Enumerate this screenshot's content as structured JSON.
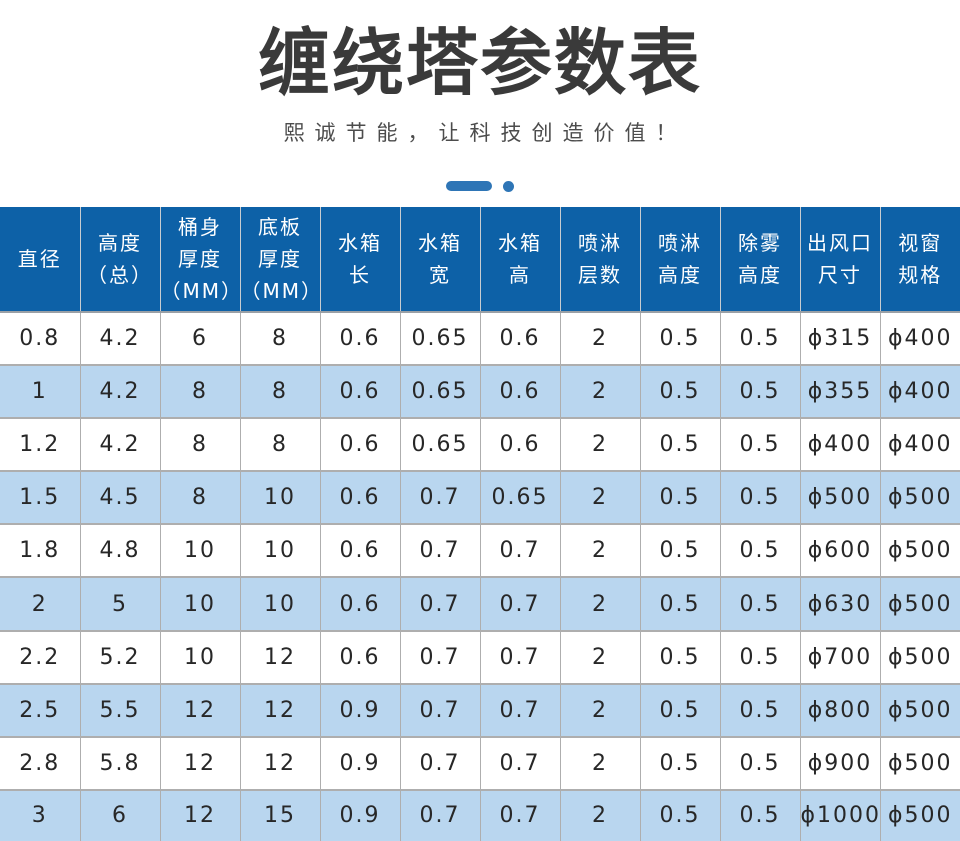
{
  "page": {
    "title": "缠绕塔参数表",
    "subtitle": "熙诚节能，让科技创造价值！"
  },
  "colors": {
    "header_bg": "#0d61a7",
    "alt_row_bg": "#b9d6ef",
    "accent": "#2e75b6",
    "grid_line": "#aeaeae",
    "title_color": "#3a3a3a",
    "header_text": "#ffffff",
    "body_text": "#272727"
  },
  "table": {
    "columns": [
      {
        "id": "diameter",
        "label": "直径",
        "lines": [
          "直径"
        ]
      },
      {
        "id": "height-total",
        "label": "高度（总）",
        "lines": [
          "高度",
          "（总）"
        ]
      },
      {
        "id": "barrel-thickness",
        "label": "桶身厚度（MM）",
        "lines": [
          "桶身",
          "厚度",
          "（MM）"
        ]
      },
      {
        "id": "base-thickness",
        "label": "底板厚度（MM）",
        "lines": [
          "底板",
          "厚度",
          "（MM）"
        ]
      },
      {
        "id": "tank-length",
        "label": "水箱长",
        "lines": [
          "水箱",
          "长"
        ]
      },
      {
        "id": "tank-width",
        "label": "水箱宽",
        "lines": [
          "水箱",
          "宽"
        ]
      },
      {
        "id": "tank-height",
        "label": "水箱高",
        "lines": [
          "水箱",
          "高"
        ]
      },
      {
        "id": "spray-layers",
        "label": "喷淋层数",
        "lines": [
          "喷淋",
          "层数"
        ]
      },
      {
        "id": "spray-height",
        "label": "喷淋高度",
        "lines": [
          "喷淋",
          "高度"
        ]
      },
      {
        "id": "demist-height",
        "label": "除雾高度",
        "lines": [
          "除雾",
          "高度"
        ]
      },
      {
        "id": "outlet-size",
        "label": "出风口尺寸",
        "lines": [
          "出风口",
          "尺寸"
        ]
      },
      {
        "id": "window-spec",
        "label": "视窗规格",
        "lines": [
          "视窗",
          "规格"
        ]
      }
    ],
    "rows": [
      [
        "0.8",
        "4.2",
        "6",
        "8",
        "0.6",
        "0.65",
        "0.6",
        "2",
        "0.5",
        "0.5",
        "ϕ315",
        "ϕ400"
      ],
      [
        "1",
        "4.2",
        "8",
        "8",
        "0.6",
        "0.65",
        "0.6",
        "2",
        "0.5",
        "0.5",
        "ϕ355",
        "ϕ400"
      ],
      [
        "1.2",
        "4.2",
        "8",
        "8",
        "0.6",
        "0.65",
        "0.6",
        "2",
        "0.5",
        "0.5",
        "ϕ400",
        "ϕ400"
      ],
      [
        "1.5",
        "4.5",
        "8",
        "10",
        "0.6",
        "0.7",
        "0.65",
        "2",
        "0.5",
        "0.5",
        "ϕ500",
        "ϕ500"
      ],
      [
        "1.8",
        "4.8",
        "10",
        "10",
        "0.6",
        "0.7",
        "0.7",
        "2",
        "0.5",
        "0.5",
        "ϕ600",
        "ϕ500"
      ],
      [
        "2",
        "5",
        "10",
        "10",
        "0.6",
        "0.7",
        "0.7",
        "2",
        "0.5",
        "0.5",
        "ϕ630",
        "ϕ500"
      ],
      [
        "2.2",
        "5.2",
        "10",
        "12",
        "0.6",
        "0.7",
        "0.7",
        "2",
        "0.5",
        "0.5",
        "ϕ700",
        "ϕ500"
      ],
      [
        "2.5",
        "5.5",
        "12",
        "12",
        "0.9",
        "0.7",
        "0.7",
        "2",
        "0.5",
        "0.5",
        "ϕ800",
        "ϕ500"
      ],
      [
        "2.8",
        "5.8",
        "12",
        "12",
        "0.9",
        "0.7",
        "0.7",
        "2",
        "0.5",
        "0.5",
        "ϕ900",
        "ϕ500"
      ],
      [
        "3",
        "6",
        "12",
        "15",
        "0.9",
        "0.7",
        "0.7",
        "2",
        "0.5",
        "0.5",
        "ϕ1000",
        "ϕ500"
      ]
    ]
  }
}
